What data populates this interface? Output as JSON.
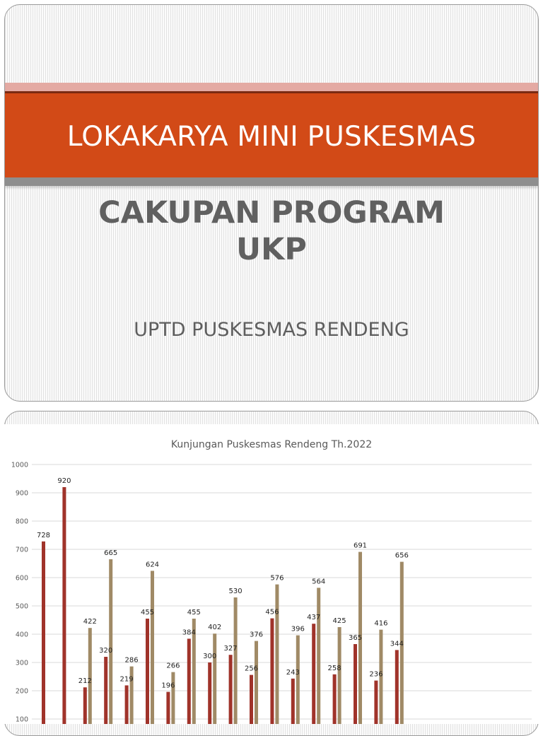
{
  "slide1": {
    "title": "LOKAKARYA MINI PUSKESMAS",
    "subtitle": "CAKUPAN PROGRAM\nUKP",
    "org": "UPTD PUSKESMAS RENDENG"
  },
  "colors": {
    "title_band": "#d24a17",
    "series_1": "#a0332a",
    "series_2": "#a08a66"
  },
  "chart_data": {
    "type": "bar",
    "title": "Kunjungan Puskesmas Rendeng Th.2022",
    "xlabel": "",
    "ylabel": "",
    "ylim": [
      0,
      1000
    ],
    "yticks": [
      100,
      200,
      300,
      400,
      500,
      600,
      700,
      800,
      900,
      1000
    ],
    "grid": true,
    "groups": [
      {
        "a": 728,
        "b": null
      },
      {
        "a": 920,
        "b": null
      },
      {
        "a": 212,
        "b": 422
      },
      {
        "a": 320,
        "b": 665
      },
      {
        "a": 219,
        "b": 286
      },
      {
        "a": 455,
        "b": 624
      },
      {
        "a": 196,
        "b": 266
      },
      {
        "a": 384,
        "b": 455
      },
      {
        "a": 300,
        "b": 402
      },
      {
        "a": 327,
        "b": 530
      },
      {
        "a": 256,
        "b": 376
      },
      {
        "a": 456,
        "b": 576
      },
      {
        "a": 243,
        "b": 396
      },
      {
        "a": 437,
        "b": 564
      },
      {
        "a": 258,
        "b": 425
      },
      {
        "a": 365,
        "b": 691
      },
      {
        "a": 236,
        "b": 416
      },
      {
        "a": 344,
        "b": 656
      }
    ]
  }
}
